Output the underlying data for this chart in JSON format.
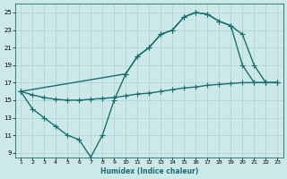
{
  "xlabel": "Humidex (Indice chaleur)",
  "bg_color": "#cce8e8",
  "grid_color": "#b0d4d4",
  "line_color": "#1a6e6e",
  "xlim": [
    0.5,
    23.5
  ],
  "ylim": [
    8.5,
    26
  ],
  "xticks": [
    1,
    2,
    3,
    4,
    5,
    6,
    7,
    8,
    9,
    10,
    11,
    12,
    13,
    14,
    15,
    16,
    17,
    18,
    19,
    20,
    21,
    22,
    23
  ],
  "yticks": [
    9,
    11,
    13,
    15,
    17,
    19,
    21,
    23,
    25
  ],
  "line1_x": [
    1,
    10,
    11,
    12,
    13,
    14,
    15,
    16,
    17,
    18,
    19,
    20,
    21,
    22,
    23
  ],
  "line1_y": [
    16,
    18,
    20,
    21,
    22.5,
    23,
    24.5,
    25,
    24.8,
    24,
    23.5,
    22.5,
    19,
    17,
    17
  ],
  "line2_x": [
    1,
    2,
    3,
    4,
    5,
    6,
    7,
    8,
    9,
    10,
    11,
    12,
    13,
    14,
    15,
    16,
    17,
    18,
    19,
    20,
    21,
    22,
    23
  ],
  "line2_y": [
    16,
    15.6,
    15.3,
    15.1,
    15.0,
    15.0,
    15.1,
    15.2,
    15.3,
    15.5,
    15.7,
    15.8,
    16.0,
    16.2,
    16.4,
    16.5,
    16.7,
    16.8,
    16.9,
    17.0,
    17.0,
    17.0,
    17.0
  ],
  "line3_x": [
    1,
    2,
    3,
    4,
    5,
    6,
    7,
    8,
    9,
    10,
    11,
    12,
    13,
    14,
    15,
    16,
    17,
    18,
    19,
    20,
    21,
    22,
    23
  ],
  "line3_y": [
    16,
    14,
    13,
    12,
    11,
    10.5,
    8.5,
    11,
    15,
    18,
    20,
    21,
    22.5,
    23,
    24.5,
    25,
    24.8,
    24,
    23.5,
    19,
    17,
    17,
    17
  ]
}
